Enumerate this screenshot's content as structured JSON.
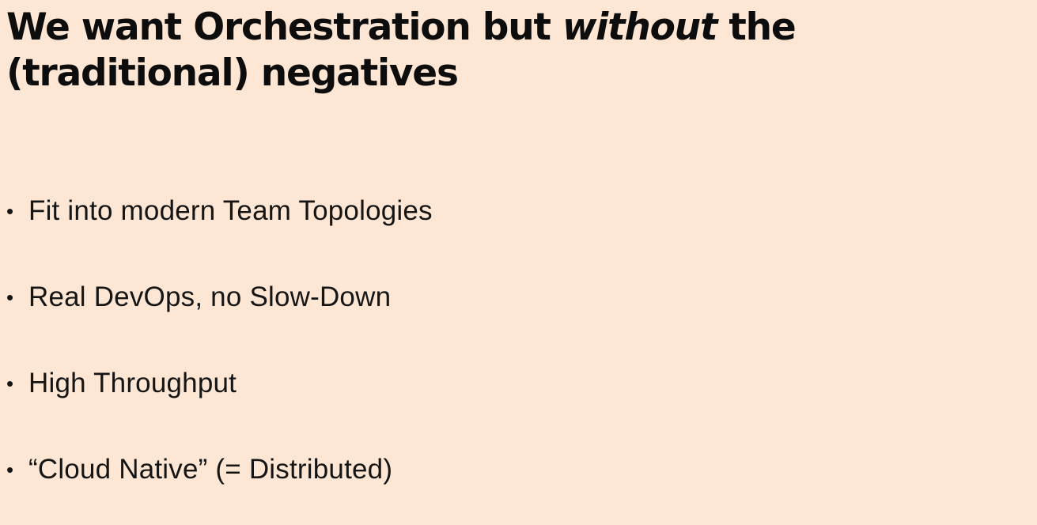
{
  "slide": {
    "title": {
      "part1": "We want Orchestration but ",
      "emphasis": "without",
      "part2": " the (traditional) negatives"
    },
    "bullet_glyph": "•",
    "bullets": [
      "Fit into modern Team Topologies",
      "Real DevOps, no Slow-Down",
      "High Throughput",
      "“Cloud Native” (= Distributed)"
    ]
  },
  "colors": {
    "background": "#fde6d3",
    "text": "#111111"
  }
}
